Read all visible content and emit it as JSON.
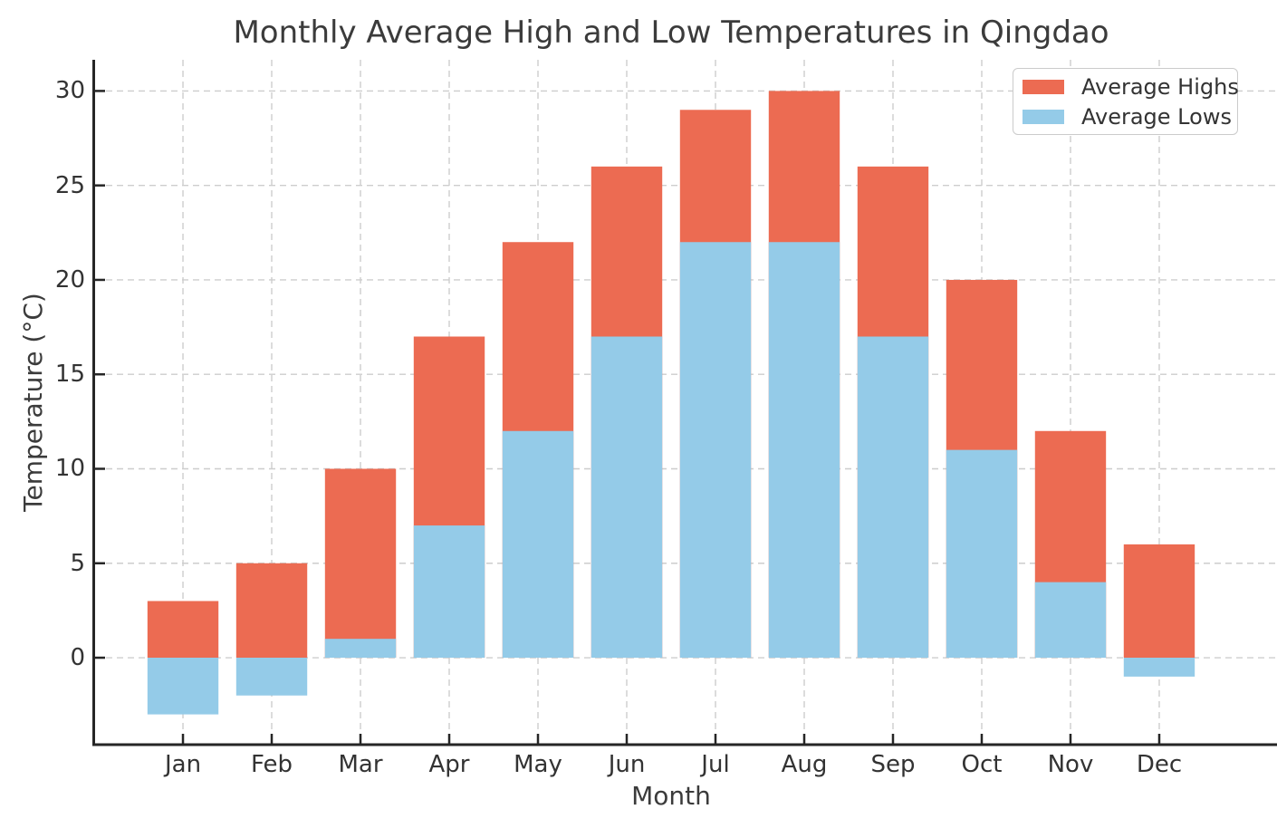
{
  "chart_data": {
    "type": "bar",
    "variant": "overlapping-bars-from-zero",
    "title": "Monthly Average High and Low Temperatures in Qingdao",
    "xlabel": "Month",
    "ylabel": "Temperature (°C)",
    "categories": [
      "Jan",
      "Feb",
      "Mar",
      "Apr",
      "May",
      "Jun",
      "Jul",
      "Aug",
      "Sep",
      "Oct",
      "Nov",
      "Dec"
    ],
    "series": [
      {
        "name": "Average Highs",
        "color": "#ec6b52",
        "values": [
          3,
          5,
          10,
          17,
          22,
          26,
          29,
          30,
          26,
          20,
          12,
          6
        ]
      },
      {
        "name": "Average Lows",
        "color": "#94cbe8",
        "values": [
          -3,
          -2,
          1,
          7,
          12,
          17,
          22,
          22,
          17,
          11,
          4,
          -1
        ]
      }
    ],
    "yticks": [
      0,
      5,
      10,
      15,
      20,
      25,
      30
    ],
    "ylim": [
      -4.65,
      31.65
    ],
    "x_margin": 0.99,
    "bar_width_fraction": 0.8,
    "grid": {
      "show": true,
      "style": "dashed",
      "axes": "both"
    },
    "legend": {
      "position": "upper right",
      "entries": [
        "Average Highs",
        "Average Lows"
      ]
    }
  },
  "styles": {
    "grid_color": "#cdcdcd",
    "spine_color": "#262626",
    "title_color": "#3b3b3b",
    "tick_text_color": "#333333",
    "background": "#ffffff"
  }
}
